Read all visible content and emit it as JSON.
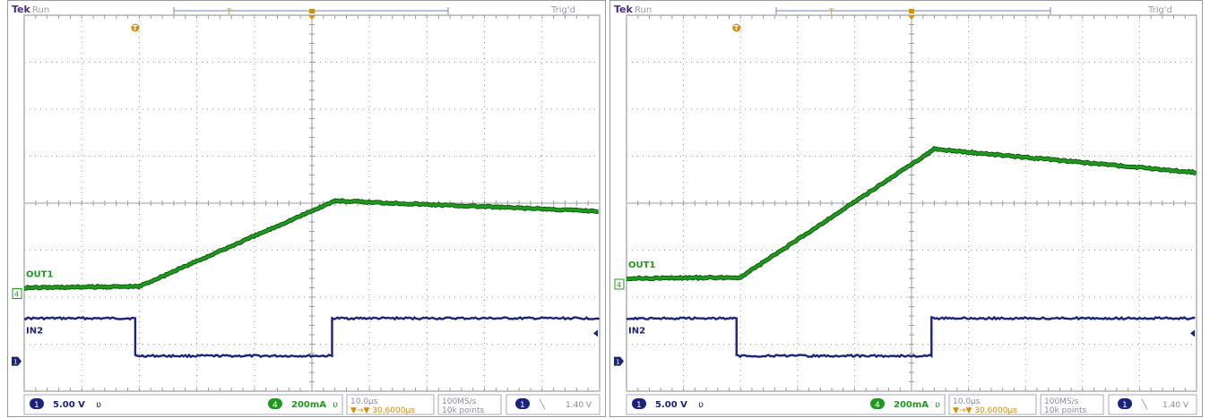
{
  "colors": {
    "grid": "#9c9c9c",
    "frame": "#8a8a8a",
    "out1": "#1f9a1f",
    "out1_dark": "#0d5a0d",
    "in2": "#1a237e",
    "trigger": "#e08a00",
    "tek_brand": "#4a2a85",
    "status_text": "#9a9aa8",
    "footer_text": "#8a8aa0",
    "footer_box": "#a8a8b8"
  },
  "panels": [
    {
      "header": {
        "brand": "Tek",
        "status": "Run",
        "trigger_status": "Trig'd"
      },
      "markers": {
        "trigger_position": "T",
        "ch4_marker": "4",
        "ch1_marker": "1"
      },
      "labels": {
        "out1": "OUT1",
        "in2": "IN2"
      },
      "footer": {
        "ch1_badge": "1",
        "ch1_scale": "5.00 V",
        "ch1_bw": "ʋ",
        "ch4_badge": "4",
        "ch4_scale": "200mA",
        "ch4_bw": "ʋ",
        "timebase": "10.0µs",
        "trig_offset": "▼→▼ 30.6000µs",
        "sample_rate": "100MS/s",
        "record": "10k points",
        "trig_src_badge": "1",
        "trig_slope": "╲",
        "trig_level": "1.40 V"
      }
    },
    {
      "header": {
        "brand": "Tek",
        "status": "Run",
        "trigger_status": "Trig'd"
      },
      "markers": {
        "trigger_position": "T",
        "ch4_marker": "4",
        "ch1_marker": "1"
      },
      "labels": {
        "out1": "OUT1",
        "in2": "IN2"
      },
      "footer": {
        "ch1_badge": "1",
        "ch1_scale": "5.00 V",
        "ch1_bw": "ʋ",
        "ch4_badge": "4",
        "ch4_scale": "200mA",
        "ch4_bw": "ʋ",
        "timebase": "10.0µs",
        "trig_offset": "▼→▼ 30.6000µs",
        "sample_rate": "100MS/s",
        "record": "10k points",
        "trig_src_badge": "1",
        "trig_slope": "╲",
        "trig_level": "1.40 V"
      }
    }
  ],
  "chart_data": [
    {
      "type": "line",
      "x_unit": "div",
      "y_unit": "div",
      "xlim": [
        0,
        10
      ],
      "ylim": [
        0,
        8
      ],
      "grid": true,
      "series": [
        {
          "name": "OUT1",
          "x": [
            0,
            2.0,
            5.4,
            10
          ],
          "y": [
            2.2,
            2.23,
            4.05,
            3.83
          ]
        },
        {
          "name": "IN2",
          "x": [
            0,
            1.93,
            1.93,
            5.35,
            5.35,
            10
          ],
          "y": [
            1.55,
            1.55,
            0.75,
            0.75,
            1.55,
            1.55
          ]
        }
      ]
    },
    {
      "type": "line",
      "x_unit": "div",
      "y_unit": "div",
      "xlim": [
        0,
        10
      ],
      "ylim": [
        0,
        8
      ],
      "grid": true,
      "series": [
        {
          "name": "OUT1",
          "x": [
            0,
            2.0,
            5.4,
            10
          ],
          "y": [
            2.4,
            2.42,
            5.15,
            4.65
          ]
        },
        {
          "name": "IN2",
          "x": [
            0,
            1.93,
            1.93,
            5.35,
            5.35,
            10
          ],
          "y": [
            1.55,
            1.55,
            0.75,
            0.75,
            1.55,
            1.55
          ]
        }
      ]
    }
  ]
}
